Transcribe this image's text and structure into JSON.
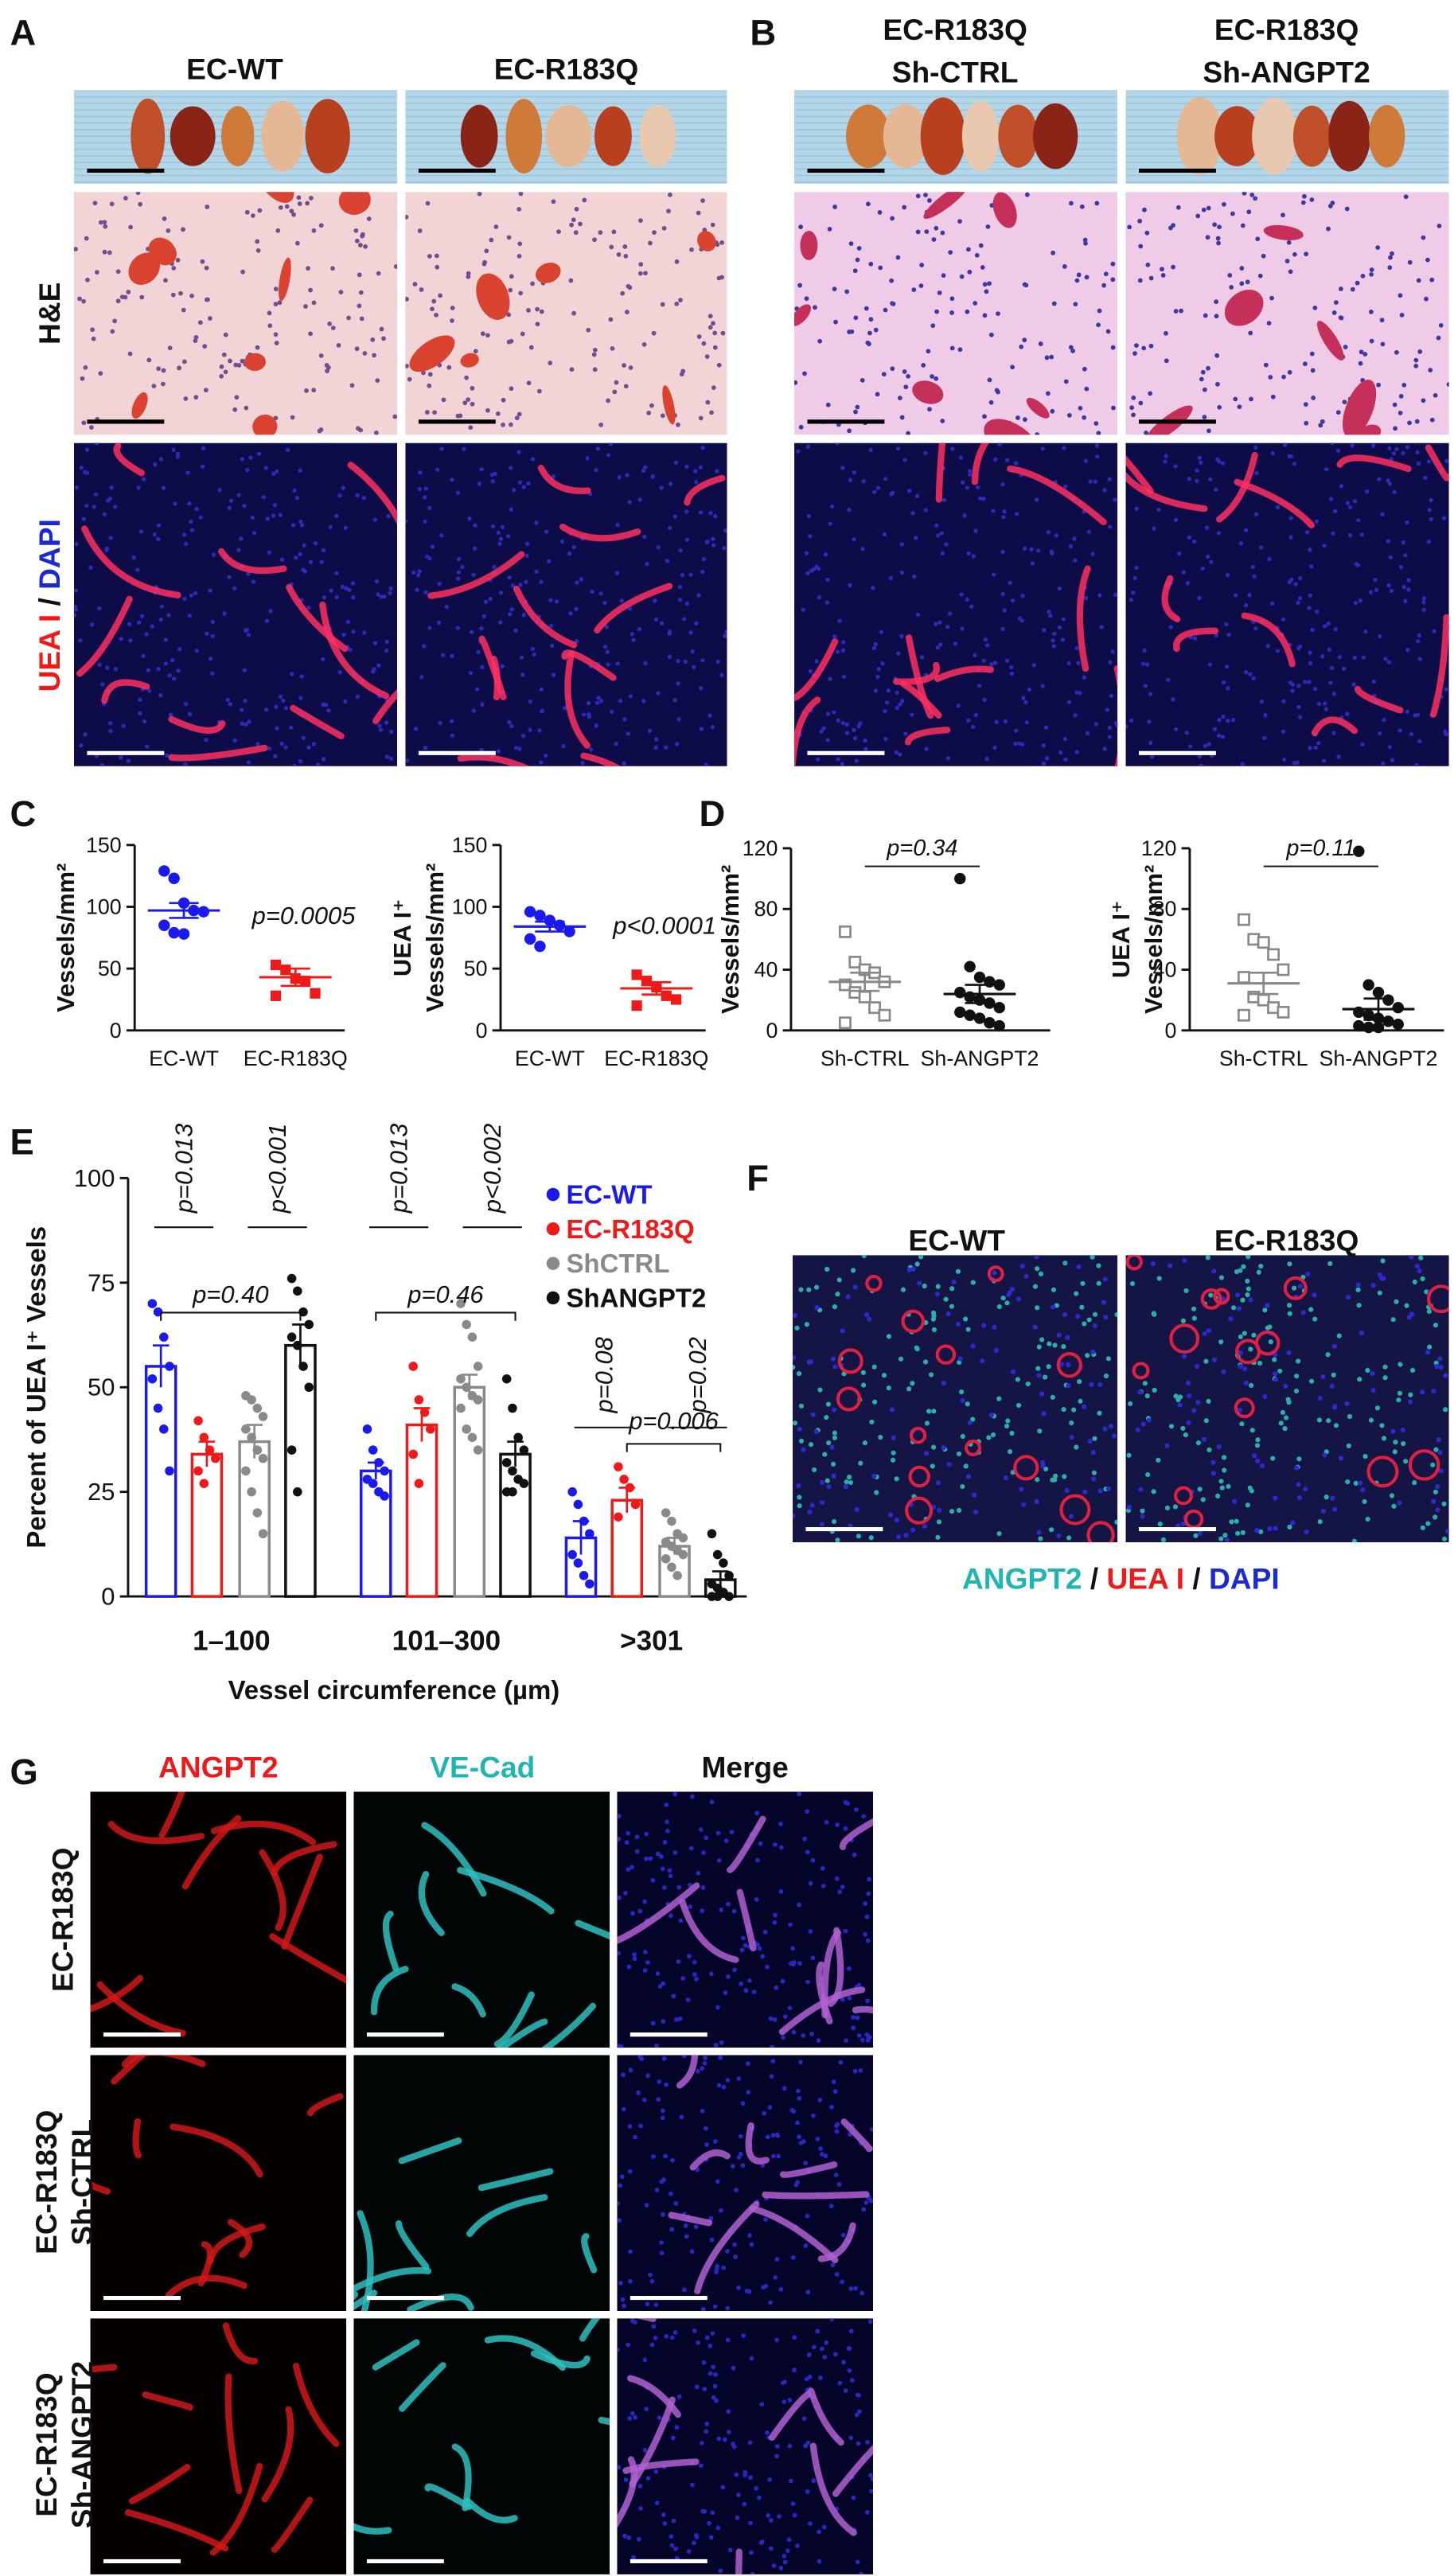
{
  "panel_labels": [
    "A",
    "B",
    "C",
    "D",
    "E",
    "F",
    "G"
  ],
  "panel_a": {
    "columns": [
      "EC-WT",
      "EC-R183Q"
    ],
    "row_label": "H&E",
    "stain_label": [
      "UEA I",
      "/",
      "DAPI"
    ]
  },
  "panel_b": {
    "columns": [
      [
        "EC-R183Q",
        "Sh-CTRL"
      ],
      [
        "EC-R183Q",
        "Sh-ANGPT2"
      ]
    ]
  },
  "panel_f": {
    "columns": [
      "EC-WT",
      "EC-R183Q"
    ],
    "stain_label": [
      "ANGPT2",
      "/",
      "UEA I",
      "/",
      "DAPI"
    ]
  },
  "panel_g": {
    "columns": [
      "ANGPT2",
      "VE-Cad",
      "Merge"
    ],
    "rows": [
      [
        "EC-R183Q"
      ],
      [
        "EC-R183Q",
        "Sh-CTRL"
      ],
      [
        "EC-R183Q",
        "Sh-ANGPT2"
      ]
    ]
  },
  "chart_data": [
    {
      "type": "dot",
      "ylabel": [
        "Vessels/mm²"
      ],
      "categories": [
        "EC-WT",
        "EC-R183Q"
      ],
      "groups": [
        {
          "color": "#1a1aee",
          "marker": "circle",
          "values": [
            129,
            123,
            103,
            97,
            96,
            85,
            79,
            78
          ],
          "mean": 97,
          "sem": 6
        },
        {
          "color": "#ee1a1a",
          "marker": "square",
          "values": [
            53,
            49,
            42,
            40,
            30,
            28
          ],
          "mean": 43,
          "sem": 7
        }
      ],
      "ylim": [
        0,
        150
      ],
      "yticks": [
        0,
        50,
        100,
        150
      ],
      "annotation": "p=0.0005",
      "bracket": false
    },
    {
      "type": "dot",
      "ylabel": [
        "UEA I⁺",
        "Vessels/mm²"
      ],
      "categories": [
        "EC-WT",
        "EC-R183Q"
      ],
      "groups": [
        {
          "color": "#1a1aee",
          "marker": "circle",
          "values": [
            96,
            93,
            89,
            85,
            80,
            74,
            68
          ],
          "mean": 84,
          "sem": 4
        },
        {
          "color": "#ee1a1a",
          "marker": "square",
          "values": [
            45,
            40,
            35,
            28,
            25,
            20
          ],
          "mean": 34,
          "sem": 5
        }
      ],
      "ylim": [
        0,
        150
      ],
      "yticks": [
        0,
        50,
        100,
        150
      ],
      "annotation": "p<0.0001",
      "bracket": false
    },
    {
      "type": "dot",
      "ylabel": [
        "Vessels/mm²"
      ],
      "categories": [
        "Sh-CTRL",
        "Sh-ANGPT2"
      ],
      "groups": [
        {
          "color": "#888888",
          "marker": "open-square",
          "values": [
            65,
            45,
            40,
            38,
            32,
            30,
            25,
            22,
            15,
            10,
            5
          ],
          "mean": 32,
          "sem": 6
        },
        {
          "color": "#111111",
          "marker": "circle",
          "values": [
            100,
            42,
            35,
            32,
            30,
            25,
            22,
            20,
            18,
            15,
            12,
            10,
            8,
            5,
            3
          ],
          "mean": 24,
          "sem": 6
        }
      ],
      "ylim": [
        0,
        120
      ],
      "yticks": [
        0,
        40,
        80,
        120
      ],
      "annotation": "p=0.34",
      "bracket": true
    },
    {
      "type": "dot",
      "ylabel": [
        "UEA I⁺",
        "Vessels/mm²"
      ],
      "categories": [
        "Sh-CTRL",
        "Sh-ANGPT2"
      ],
      "groups": [
        {
          "color": "#888888",
          "marker": "open-square",
          "values": [
            73,
            60,
            58,
            50,
            40,
            35,
            22,
            20,
            15,
            12,
            10
          ],
          "mean": 31,
          "sem": 7
        },
        {
          "color": "#111111",
          "marker": "circle",
          "values": [
            118,
            30,
            25,
            20,
            15,
            12,
            10,
            8,
            6,
            4,
            3,
            2,
            2
          ],
          "mean": 14,
          "sem": 7
        }
      ],
      "ylim": [
        0,
        120
      ],
      "yticks": [
        0,
        40,
        80,
        120
      ],
      "annotation": "p=0.11",
      "bracket": true
    },
    {
      "type": "bar",
      "ylabel": [
        "Percent of UEA I⁺ Vessels"
      ],
      "xlabel": "Vessel circumference (µm)",
      "categories": [
        "1–100",
        "101–300",
        ">301"
      ],
      "series": [
        {
          "name": "EC-WT",
          "color": "#1a1aee",
          "values": [
            55,
            30,
            14
          ],
          "errors": [
            5,
            2,
            4
          ],
          "points": [
            [
              70,
              68,
              62,
              55,
              52,
              45,
              40,
              30
            ],
            [
              40,
              35,
              32,
              30,
              28,
              27,
              25,
              24
            ],
            [
              25,
              22,
              18,
              15,
              10,
              8,
              5,
              3
            ]
          ]
        },
        {
          "name": "EC-R183Q",
          "color": "#ee1a1a",
          "values": [
            34,
            41,
            23
          ],
          "errors": [
            3,
            4,
            3
          ],
          "points": [
            [
              42,
              38,
              35,
              33,
              30,
              27
            ],
            [
              55,
              47,
              44,
              40,
              34,
              27
            ],
            [
              31,
              28,
              26,
              22,
              19
            ]
          ]
        },
        {
          "name": "ShCTRL",
          "color": "#8a8a8a",
          "values": [
            37,
            50,
            12
          ],
          "errors": [
            4,
            3,
            2
          ],
          "points": [
            [
              48,
              47,
              45,
              43,
              40,
              38,
              35,
              33,
              30,
              25,
              20,
              15
            ],
            [
              70,
              65,
              62,
              55,
              52,
              50,
              48,
              47,
              45,
              40,
              38,
              35
            ],
            [
              20,
              18,
              15,
              14,
              13,
              12,
              11,
              10,
              9,
              7,
              5
            ]
          ]
        },
        {
          "name": "ShANGPT2",
          "color": "#111111",
          "values": [
            60,
            34,
            4
          ],
          "errors": [
            5,
            3,
            2
          ],
          "points": [
            [
              76,
              73,
              68,
              65,
              62,
              60,
              55,
              50,
              35,
              25
            ],
            [
              52,
              45,
              38,
              35,
              32,
              30,
              28,
              27,
              25,
              25
            ],
            [
              15,
              10,
              8,
              5,
              3,
              2,
              1,
              0,
              0,
              0
            ]
          ]
        }
      ],
      "comparisons": [
        {
          "category": 0,
          "series": [
            0,
            1
          ],
          "text": "p=0.013"
        },
        {
          "category": 0,
          "series": [
            2,
            3
          ],
          "text": "p<0.001"
        },
        {
          "category": 0,
          "series": [
            0,
            3
          ],
          "text": "p=0.40"
        },
        {
          "category": 1,
          "series": [
            0,
            1
          ],
          "text": "p=0.013"
        },
        {
          "category": 1,
          "series": [
            2,
            3
          ],
          "text": "p<0.002"
        },
        {
          "category": 1,
          "series": [
            0,
            3
          ],
          "text": "p=0.46"
        },
        {
          "category": 2,
          "series": [
            0,
            1
          ],
          "text": "p=0.08"
        },
        {
          "category": 2,
          "series": [
            2,
            3
          ],
          "text": "p=0.02"
        },
        {
          "category": 2,
          "series": [
            1,
            3
          ],
          "text": "p=0.006"
        }
      ],
      "ylim": [
        0,
        100
      ],
      "yticks": [
        0,
        25,
        50,
        75,
        100
      ],
      "legend": "top-right"
    }
  ]
}
